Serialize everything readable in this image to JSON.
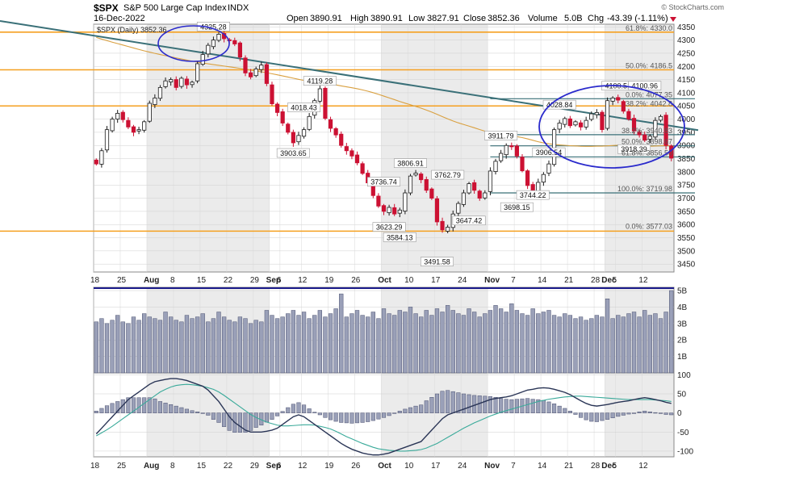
{
  "header": {
    "symbol": "$SPX",
    "name": "S&P 500 Large Cap Index",
    "exchange": "INDX",
    "date": "16-Dec-2022",
    "open_label": "Open",
    "open": "3890.91",
    "high_label": "High",
    "high": "3890.91",
    "low_label": "Low",
    "low": "3827.91",
    "close_label": "Close",
    "close": "3852.36",
    "volume_label": "Volume",
    "volume": "5.0B",
    "chg_label": "Chg",
    "chg": "-43.39 (-1.11%)",
    "credit": "© StockCharts.com",
    "legend": "$SPX (Daily) 3852.36"
  },
  "colors": {
    "up": "#1a1a1a",
    "down": "#cc1133",
    "hline": "#f5a020",
    "trend": "#3a7078",
    "sma": "#d9a040",
    "circle": "#2a2acc",
    "vol_bar": "#9aa0b8",
    "macd_line": "#2a3556",
    "signal_line": "#3aaa9a",
    "gray_band": "#e4e4e4"
  },
  "chart_data": [
    {
      "type": "candlestick",
      "ylim": [
        3420,
        4360
      ],
      "yticks": [
        3450,
        3500,
        3550,
        3600,
        3650,
        3700,
        3750,
        3800,
        3850,
        3900,
        3950,
        4000,
        4050,
        4100,
        4150,
        4200,
        4250,
        4300,
        4350
      ],
      "x_tick_labels": [
        "18",
        "25",
        "Aug",
        "8",
        "15",
        "22",
        "29",
        "Sep",
        "6",
        "12",
        "19",
        "26",
        "Oct",
        "10",
        "17",
        "24",
        "Nov",
        "7",
        "14",
        "21",
        "28",
        "Dec",
        "5",
        "12"
      ],
      "x_tick_index": [
        0,
        5,
        10,
        15,
        20,
        25,
        30,
        33,
        35,
        39,
        44,
        49,
        54,
        59,
        64,
        69,
        74,
        79,
        84,
        89,
        94,
        96,
        98,
        103
      ],
      "bold_tick_labels": [
        "Aug",
        "Sep",
        "Oct",
        "Nov",
        "Dec"
      ],
      "closes": [
        3830,
        3880,
        3960,
        4000,
        4022,
        3998,
        3970,
        3950,
        3960,
        3990,
        4060,
        4080,
        4120,
        4145,
        4150,
        4120,
        4155,
        4130,
        4140,
        4210,
        4245,
        4280,
        4300,
        4322,
        4305,
        4298,
        4285,
        4235,
        4175,
        4160,
        4190,
        4205,
        4135,
        4058,
        4025,
        3985,
        3950,
        3910,
        3938,
        3960,
        4010,
        4070,
        4115,
        4003,
        3965,
        3940,
        3900,
        3880,
        3860,
        3834,
        3794,
        3758,
        3710,
        3670,
        3650,
        3665,
        3640,
        3655,
        3720,
        3784,
        3795,
        3770,
        3730,
        3700,
        3610,
        3580,
        3590,
        3640,
        3680,
        3720,
        3755,
        3730,
        3700,
        3720,
        3803,
        3840,
        3870,
        3900,
        3895,
        3860,
        3804,
        3748,
        3720,
        3760,
        3790,
        3830,
        3960,
        3985,
        4002,
        3975,
        3990,
        3970,
        3995,
        4020,
        4025,
        3960,
        4070,
        4080,
        4072,
        4030,
        4000,
        3955,
        3940,
        3920,
        3935,
        3995,
        4010,
        3900,
        3852
      ],
      "annotations": [
        {
          "text": "4325.28",
          "index": 22,
          "value": 4325.28
        },
        {
          "text": "4119.28",
          "index": 42,
          "value": 4119.28
        },
        {
          "text": "4018.43",
          "index": 39,
          "value": 4018.43
        },
        {
          "text": "3903.65",
          "index": 37,
          "value": 3903.65
        },
        {
          "text": "3736.74",
          "index": 54,
          "value": 3736.74
        },
        {
          "text": "3806.91",
          "index": 59,
          "value": 3806.91
        },
        {
          "text": "3623.29",
          "index": 55,
          "value": 3623.29
        },
        {
          "text": "3584.13",
          "index": 57,
          "value": 3584.13
        },
        {
          "text": "3762.79",
          "index": 66,
          "value": 3762.79
        },
        {
          "text": "3491.58",
          "index": 64,
          "value": 3491.58
        },
        {
          "text": "3647.42",
          "index": 70,
          "value": 3647.42
        },
        {
          "text": "3911.79",
          "index": 76,
          "value": 3911.79
        },
        {
          "text": "3744.22",
          "index": 82,
          "value": 3744.22
        },
        {
          "text": "3698.15",
          "index": 79,
          "value": 3698.15
        },
        {
          "text": "4028.84",
          "index": 87,
          "value": 4028.84
        },
        {
          "text": "3906.54",
          "index": 85,
          "value": 3906.54
        },
        {
          "text": "4100.51",
          "index": 98,
          "value": 4100.51
        },
        {
          "text": "4100.96",
          "index": 103,
          "value": 4100.96
        },
        {
          "text": "3918.39",
          "index": 101,
          "value": 3918.39
        }
      ],
      "horizontal_lines": [
        4330,
        4187,
        4050,
        3575
      ],
      "fib_levels": [
        {
          "text": "61.8%: 4330.0",
          "value": 4330
        },
        {
          "text": "50.0%: 4186.5",
          "value": 4186.5
        },
        {
          "text": "0.0%: 4077.35",
          "value": 4077.35
        },
        {
          "text": "38.2%: 4042.8",
          "value": 4042.8
        },
        {
          "text": "38.2%: 3940.83",
          "value": 3940.83
        },
        {
          "text": "50.0%: 3898.67",
          "value": 3898.67
        },
        {
          "text": "61.8%: 3856.50",
          "value": 3856.5
        },
        {
          "text": "100.0%: 3719.98",
          "value": 3719.98
        },
        {
          "text": "0.0%: 3577.03",
          "value": 3577.03
        }
      ],
      "fib_lines": [
        4077.35,
        3940.83,
        3898.67,
        3856.5,
        3719.98
      ],
      "trendline": [
        {
          "index": 0,
          "value": 4360
        },
        {
          "index": 108,
          "value": 3995
        }
      ]
    },
    {
      "type": "bar",
      "series_label": "Volume",
      "ylim": [
        0,
        5.1
      ],
      "yticks": [
        1,
        2,
        3,
        4,
        5
      ],
      "ytick_labels": [
        "1B",
        "2B",
        "3B",
        "4B",
        "5B"
      ],
      "values": [
        3.1,
        3.3,
        3.0,
        3.2,
        3.5,
        3.1,
        3.0,
        3.4,
        3.2,
        3.6,
        3.4,
        3.3,
        3.2,
        3.7,
        3.4,
        3.2,
        3.1,
        3.5,
        3.3,
        3.4,
        3.6,
        3.1,
        3.3,
        3.7,
        3.4,
        3.2,
        3.1,
        3.4,
        3.3,
        3.0,
        3.2,
        3.1,
        3.8,
        3.5,
        3.3,
        3.4,
        3.6,
        3.8,
        3.5,
        3.7,
        3.3,
        3.5,
        3.8,
        3.4,
        3.6,
        3.9,
        4.8,
        3.4,
        3.6,
        3.8,
        3.5,
        3.4,
        3.7,
        3.3,
        3.9,
        3.6,
        3.5,
        3.8,
        3.7,
        4.0,
        3.6,
        3.4,
        3.8,
        3.5,
        3.9,
        3.7,
        4.1,
        3.8,
        3.6,
        3.5,
        3.9,
        3.7,
        3.4,
        3.6,
        3.8,
        4.1,
        3.9,
        3.7,
        4.2,
        3.8,
        3.6,
        3.5,
        3.9,
        3.6,
        3.7,
        3.8,
        3.5,
        3.4,
        3.6,
        3.5,
        3.3,
        3.4,
        3.2,
        3.3,
        3.5,
        3.4,
        4.5,
        3.3,
        3.5,
        3.4,
        3.6,
        3.7,
        3.4,
        3.8,
        3.5,
        3.6,
        3.3,
        3.7,
        5.0
      ]
    },
    {
      "type": "line",
      "ylim": [
        -115,
        105
      ],
      "yticks": [
        -100,
        -50,
        0,
        50,
        100
      ],
      "macd": [
        -55,
        -40,
        -25,
        -10,
        5,
        20,
        35,
        45,
        55,
        65,
        75,
        82,
        85,
        88,
        90,
        90,
        88,
        85,
        80,
        75,
        70,
        60,
        45,
        30,
        10,
        -10,
        -25,
        -35,
        -45,
        -50,
        -50,
        -50,
        -48,
        -45,
        -40,
        -30,
        -20,
        -10,
        -5,
        -10,
        -20,
        -30,
        -40,
        -50,
        -60,
        -70,
        -80,
        -88,
        -95,
        -100,
        -105,
        -108,
        -110,
        -110,
        -108,
        -105,
        -100,
        -95,
        -90,
        -85,
        -80,
        -75,
        -60,
        -45,
        -30,
        -15,
        -5,
        0,
        5,
        10,
        15,
        20,
        25,
        30,
        35,
        38,
        40,
        42,
        45,
        50,
        55,
        60,
        62,
        65,
        66,
        65,
        62,
        58,
        54,
        48,
        40,
        32,
        25,
        20,
        18,
        20,
        22,
        25,
        28,
        30,
        32,
        35,
        38,
        40,
        38,
        35,
        32,
        28,
        25
      ],
      "signal": [
        -60,
        -52,
        -44,
        -35,
        -25,
        -15,
        -5,
        5,
        15,
        25,
        35,
        45,
        55,
        62,
        68,
        72,
        74,
        75,
        74,
        72,
        70,
        66,
        62,
        55,
        46,
        36,
        26,
        16,
        6,
        -4,
        -12,
        -18,
        -24,
        -28,
        -32,
        -34,
        -34,
        -33,
        -32,
        -31,
        -31,
        -32,
        -35,
        -38,
        -42,
        -48,
        -55,
        -62,
        -68,
        -74,
        -80,
        -85,
        -90,
        -94,
        -96,
        -98,
        -99,
        -100,
        -100,
        -99,
        -98,
        -96,
        -92,
        -86,
        -80,
        -72,
        -64,
        -56,
        -48,
        -40,
        -33,
        -26,
        -20,
        -14,
        -8,
        -3,
        2,
        6,
        10,
        14,
        18,
        22,
        26,
        30,
        33,
        36,
        38,
        40,
        42,
        43,
        44,
        44,
        43,
        42,
        41,
        40,
        39,
        38,
        37,
        36,
        35,
        35,
        35,
        35,
        35,
        34,
        33,
        32,
        30
      ],
      "histogram": [
        5,
        12,
        19,
        25,
        30,
        35,
        40,
        40,
        40,
        40,
        40,
        37,
        30,
        26,
        22,
        18,
        14,
        10,
        6,
        3,
        0,
        -6,
        -17,
        -25,
        -36,
        -46,
        -51,
        -51,
        -51,
        -46,
        -38,
        -32,
        -24,
        -17,
        -8,
        4,
        14,
        23,
        27,
        21,
        11,
        2,
        -5,
        -12,
        -18,
        -22,
        -25,
        -26,
        -27,
        -26,
        -25,
        -23,
        -20,
        -16,
        -12,
        -7,
        -1,
        5,
        10,
        14,
        18,
        21,
        32,
        41,
        50,
        57,
        59,
        56,
        53,
        50,
        48,
        46,
        45,
        44,
        43,
        41,
        38,
        36,
        35,
        36,
        37,
        38,
        36,
        35,
        33,
        29,
        24,
        18,
        12,
        5,
        -4,
        -12,
        -18,
        -22,
        -23,
        -20,
        -17,
        -13,
        -9,
        -6,
        -3,
        0,
        3,
        5,
        3,
        1,
        -1,
        -4,
        -5
      ]
    }
  ]
}
